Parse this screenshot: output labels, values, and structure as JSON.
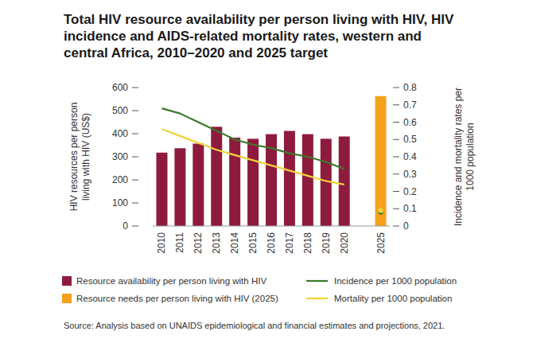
{
  "chart_data": {
    "type": "bar",
    "title": "Total HIV resource availability per person living with HIV, HIV incidence and AIDS-related mortality rates, western and central Africa, 2010–2020 and 2025 target",
    "source": "Source: Analysis based on UNAIDS epidemiological and financial estimates and projections, 2021.",
    "y_label": "HIV resources per person living with HIV (US$)",
    "y2_label": "Incidence and mortality rates per 1000 population",
    "categories": [
      "2010",
      "2011",
      "2012",
      "2013",
      "2014",
      "2015",
      "2016",
      "2017",
      "2018",
      "2019",
      "2020",
      null,
      "2025"
    ],
    "series": [
      {
        "name": "Resource availability per person living with HIV",
        "type": "bar",
        "color": "#8e1b3e",
        "values": [
          318,
          337,
          357,
          430,
          383,
          378,
          398,
          412,
          398,
          378,
          388,
          null,
          null
        ]
      },
      {
        "name": "Resource needs per person living with HIV (2025)",
        "type": "bar",
        "color": "#f5a11c",
        "values": [
          null,
          null,
          null,
          null,
          null,
          null,
          null,
          null,
          null,
          null,
          null,
          null,
          563
        ]
      },
      {
        "name": "Incidence per 1000 population",
        "type": "line",
        "axis": "y2",
        "color": "#3b7a2a",
        "values": [
          0.68,
          0.65,
          0.6,
          0.55,
          0.5,
          0.47,
          0.45,
          0.42,
          0.4,
          0.37,
          0.33,
          null,
          0.08
        ]
      },
      {
        "name": "Mortality per 1000 population",
        "type": "line",
        "axis": "y2",
        "color": "#f0d23a",
        "values": [
          0.56,
          0.52,
          0.48,
          0.44,
          0.41,
          0.38,
          0.35,
          0.32,
          0.29,
          0.26,
          0.24,
          null,
          0.09
        ]
      }
    ],
    "ylim": [
      0,
      600
    ],
    "yticks": [
      0,
      100,
      200,
      300,
      400,
      500,
      600
    ],
    "y2lim": [
      0,
      0.8
    ],
    "y2ticks": [
      0,
      0.1,
      0.2,
      0.3,
      0.4,
      0.5,
      0.6,
      0.7,
      0.8
    ],
    "grid": false,
    "legend": "bottom"
  }
}
